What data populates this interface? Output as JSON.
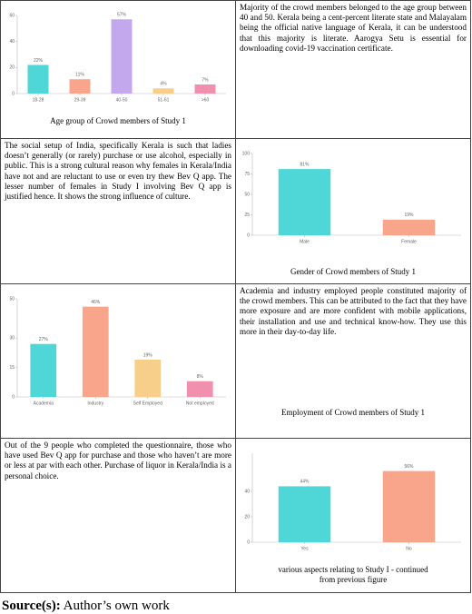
{
  "table": {
    "rows": [
      [
        {
          "chart": {
            "type": "bar",
            "categories": [
              "18-28",
              "29-39",
              "40-50",
              "51-61",
              ">60"
            ],
            "values": [
              22,
              11,
              57,
              4,
              7
            ],
            "value_labels": [
              "22%",
              "11%",
              "57%",
              "4%",
              "7%"
            ],
            "colors": [
              "#4fd6d6",
              "#f8a58c",
              "#c3a8ee",
              "#f7cf8a",
              "#f08fae"
            ],
            "ylim": [
              0,
              60
            ],
            "yticks": [
              0,
              20,
              40,
              60
            ]
          },
          "caption": "Age group of Crowd members of Study 1"
        },
        {
          "text": "Majority of the crowd members belonged to the age group between 40 and 50. Kerala being a cent-percent literate state and Malayalam being the official native language of Kerala, it can be understood that this majority is literate. Aarogya Setu is essential for downloading covid-19 vaccination certificate."
        }
      ],
      [
        {
          "text": "The social setup of India, specifically Kerala is such that ladies doesn’t generally (or rarely) purchase or use alcohol, especially in public. This is a strong cultural reason why females in Kerala/India have not and are reluctant to use or even try thew Bev Q app. The lesser number of females in Study I involving Bev Q app is justified hence. It shows the strong influence of culture."
        },
        {
          "chart": {
            "type": "bar",
            "categories": [
              "Male",
              "Female"
            ],
            "values": [
              81,
              19
            ],
            "value_labels": [
              "81%",
              "19%"
            ],
            "colors": [
              "#4fd6d6",
              "#f8a58c"
            ],
            "ylim": [
              0,
              100
            ],
            "yticks": [
              0,
              25,
              50,
              75,
              100
            ]
          },
          "caption": "Gender of Crowd members of Study 1"
        }
      ],
      [
        {
          "chart": {
            "type": "bar",
            "categories": [
              "Academia",
              "Industry",
              "Self Employed",
              "Not employed"
            ],
            "values": [
              27,
              46,
              19,
              8
            ],
            "value_labels": [
              "27%",
              "46%",
              "19%",
              "8%"
            ],
            "colors": [
              "#4fd6d6",
              "#f8a58c",
              "#f7cf8a",
              "#f08fae"
            ],
            "ylim": [
              0,
              50
            ],
            "yticks": [
              0,
              15,
              30,
              50
            ]
          }
        },
        {
          "text": "Academia and industry employed people constituted majority of the crowd members. This can be attributed to the fact that they have more exposure and are more confident with mobile applications, their installation and use and technical know-how. They use this more in their day-to-day life.",
          "caption": "Employment of Crowd members of Study 1"
        }
      ],
      [
        {
          "text": "Out of the 9 people who completed the questionnaire, those who have used Bev Q app for purchase and those who haven’t are more or less at par with each other. Purchase of liquor in Kerala/India is a personal choice."
        },
        {
          "chart": {
            "type": "bar",
            "categories": [
              "Yes",
              "No"
            ],
            "values": [
              44,
              56
            ],
            "value_labels": [
              "44%",
              "56%"
            ],
            "colors": [
              "#4fd6d6",
              "#f8a58c"
            ],
            "ylim": [
              0,
              70
            ],
            "yticks": [
              0,
              20,
              40
            ]
          },
          "caption": "various aspects relating to Study I - continued from previous figure"
        }
      ]
    ]
  },
  "source": {
    "label": "Source(s):",
    "text": "Author’s own work"
  }
}
